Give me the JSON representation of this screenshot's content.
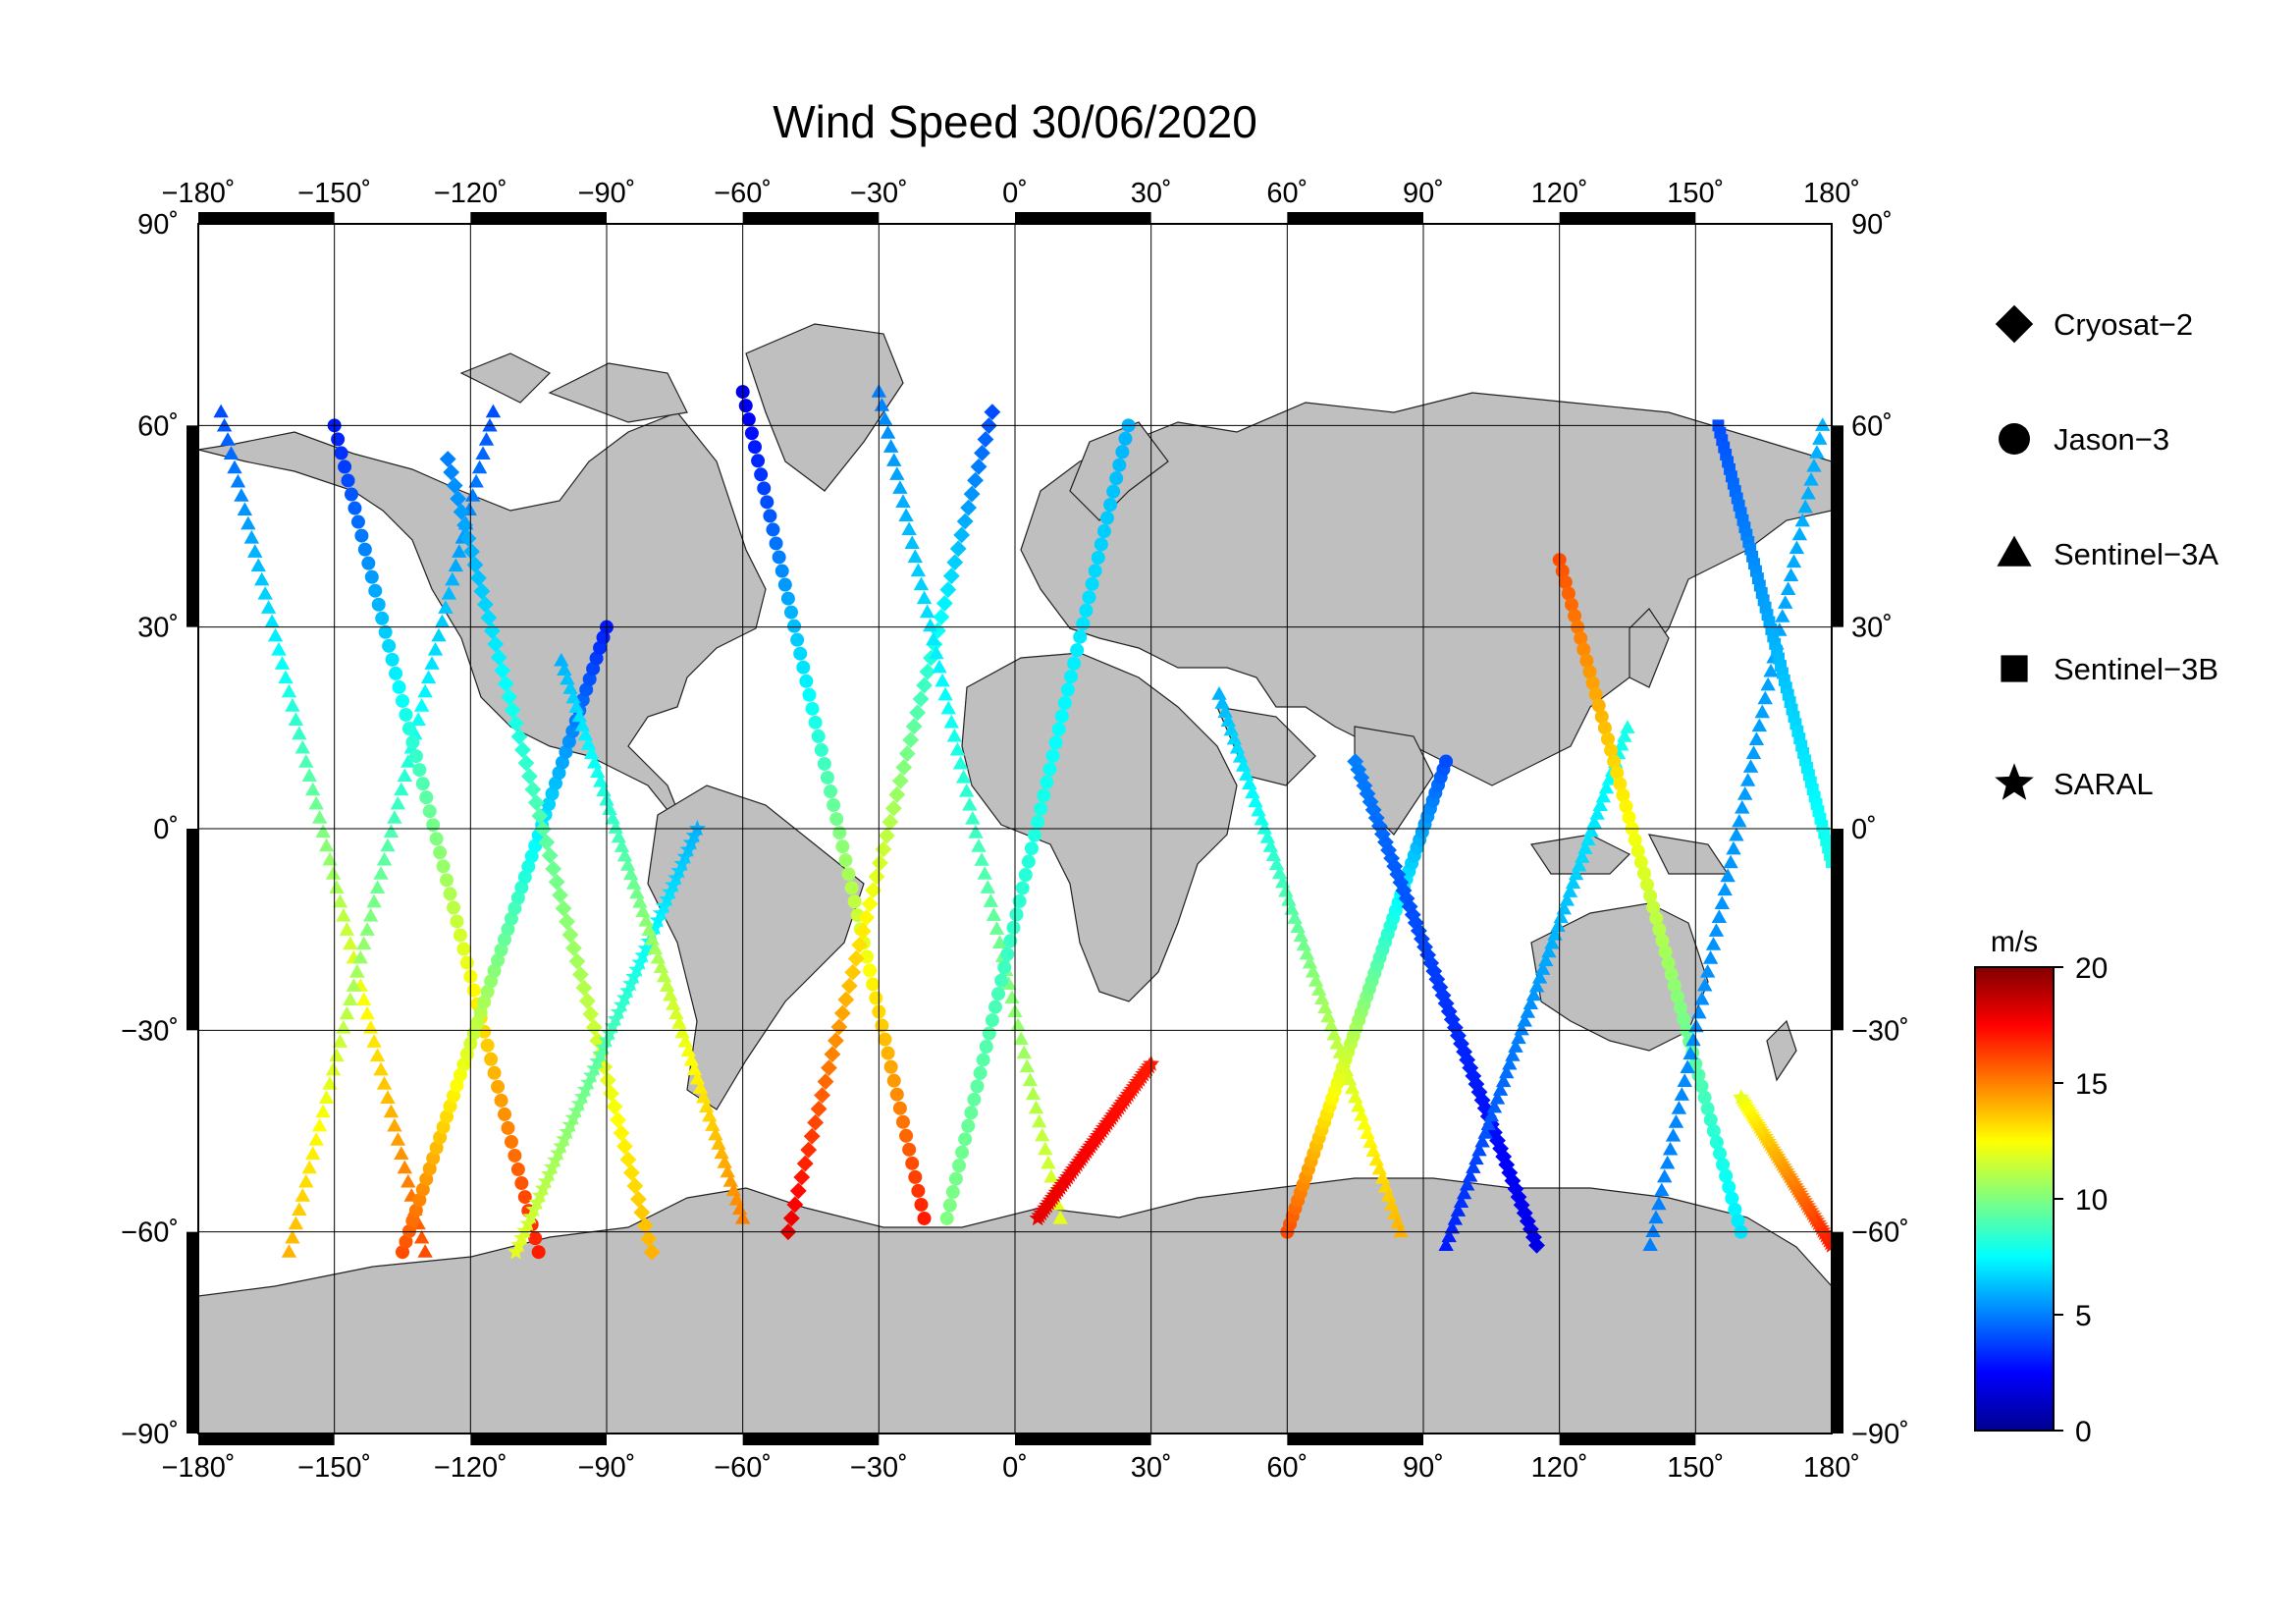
{
  "title": "Wind Speed 30/06/2020",
  "map": {
    "projection": "equirectangular",
    "lon_range": [
      -180,
      180
    ],
    "lat_range": [
      -90,
      90
    ],
    "lon_ticks": [
      -180,
      -150,
      -120,
      -90,
      -60,
      -30,
      0,
      30,
      60,
      90,
      120,
      150,
      180
    ],
    "lat_ticks": [
      -90,
      -60,
      -30,
      0,
      30,
      60,
      90
    ],
    "lon_tick_labels": [
      "−180˚",
      "−150˚",
      "−120˚",
      "−90˚",
      "−60˚",
      "−30˚",
      "0˚",
      "30˚",
      "60˚",
      "90˚",
      "120˚",
      "150˚",
      "180˚"
    ],
    "lat_tick_labels": [
      "−90˚",
      "−60˚",
      "−30˚",
      "0˚",
      "30˚",
      "60˚",
      "90˚"
    ],
    "land_color": "#bfbfbf",
    "ocean_color": "#ffffff",
    "grid": true
  },
  "legend": {
    "items": [
      {
        "label": "Cryosat−2",
        "marker": "diamond"
      },
      {
        "label": "Jason−3",
        "marker": "circle"
      },
      {
        "label": "Sentinel−3A",
        "marker": "triangle"
      },
      {
        "label": "Sentinel−3B",
        "marker": "square"
      },
      {
        "label": "SARAL",
        "marker": "star"
      }
    ]
  },
  "colorbar": {
    "unit": "m/s",
    "min": 0,
    "max": 20,
    "ticks": [
      "0",
      "5",
      "10",
      "15",
      "20"
    ],
    "colormap": "jet"
  },
  "chart_data": {
    "type": "scatter",
    "title": "Wind Speed 30/06/2020",
    "xlim": [
      -180,
      180
    ],
    "ylim": [
      -90,
      90
    ],
    "color_variable": "wind speed (m/s)",
    "tracks": [
      {
        "marker": "triangle",
        "lon0": -175,
        "lat0": 62,
        "lon1": -130,
        "lat1": -63,
        "w0": 4,
        "w1": 16
      },
      {
        "marker": "triangle",
        "lon0": -160,
        "lat0": -63,
        "lon1": -115,
        "lat1": 62,
        "w0": 14,
        "w1": 4
      },
      {
        "marker": "circle",
        "lon0": -150,
        "lat0": 60,
        "lon1": -105,
        "lat1": -63,
        "w0": 3,
        "w1": 17
      },
      {
        "marker": "circle",
        "lon0": -135,
        "lat0": -63,
        "lon1": -90,
        "lat1": 30,
        "w0": 16,
        "w1": 3
      },
      {
        "marker": "diamond",
        "lon0": -125,
        "lat0": 55,
        "lon1": -80,
        "lat1": -63,
        "w0": 5,
        "w1": 14
      },
      {
        "marker": "star",
        "lon0": -110,
        "lat0": -63,
        "lon1": -70,
        "lat1": 0,
        "w0": 12,
        "w1": 6
      },
      {
        "marker": "triangle",
        "lon0": -100,
        "lat0": 25,
        "lon1": -60,
        "lat1": -58,
        "w0": 6,
        "w1": 15
      },
      {
        "marker": "circle",
        "lon0": -60,
        "lat0": 65,
        "lon1": -20,
        "lat1": -58,
        "w0": 2,
        "w1": 17
      },
      {
        "marker": "diamond",
        "lon0": -50,
        "lat0": -60,
        "lon1": -5,
        "lat1": 62,
        "w0": 18,
        "w1": 4
      },
      {
        "marker": "triangle",
        "lon0": -30,
        "lat0": 65,
        "lon1": 10,
        "lat1": -58,
        "w0": 5,
        "w1": 12
      },
      {
        "marker": "circle",
        "lon0": -15,
        "lat0": -58,
        "lon1": 25,
        "lat1": 60,
        "w0": 10,
        "w1": 6
      },
      {
        "marker": "star",
        "lon0": 5,
        "lat0": -58,
        "lon1": 30,
        "lat1": -35,
        "w0": 18,
        "w1": 17
      },
      {
        "marker": "triangle",
        "lon0": 45,
        "lat0": 20,
        "lon1": 85,
        "lat1": -60,
        "w0": 6,
        "w1": 14
      },
      {
        "marker": "circle",
        "lon0": 60,
        "lat0": -60,
        "lon1": 95,
        "lat1": 10,
        "w0": 16,
        "w1": 4
      },
      {
        "marker": "diamond",
        "lon0": 75,
        "lat0": 10,
        "lon1": 115,
        "lat1": -62,
        "w0": 5,
        "w1": 2
      },
      {
        "marker": "triangle",
        "lon0": 95,
        "lat0": -62,
        "lon1": 135,
        "lat1": 15,
        "w0": 3,
        "w1": 8
      },
      {
        "marker": "circle",
        "lon0": 120,
        "lat0": 40,
        "lon1": 160,
        "lat1": -60,
        "w0": 16,
        "w1": 7
      },
      {
        "marker": "triangle",
        "lon0": 140,
        "lat0": -62,
        "lon1": 178,
        "lat1": 60,
        "w0": 5,
        "w1": 6
      },
      {
        "marker": "square",
        "lon0": 155,
        "lat0": 60,
        "lon1": 180,
        "lat1": -5,
        "w0": 4,
        "w1": 8
      },
      {
        "marker": "star",
        "lon0": 160,
        "lat0": -40,
        "lon1": 180,
        "lat1": -62,
        "w0": 12,
        "w1": 17
      }
    ]
  }
}
